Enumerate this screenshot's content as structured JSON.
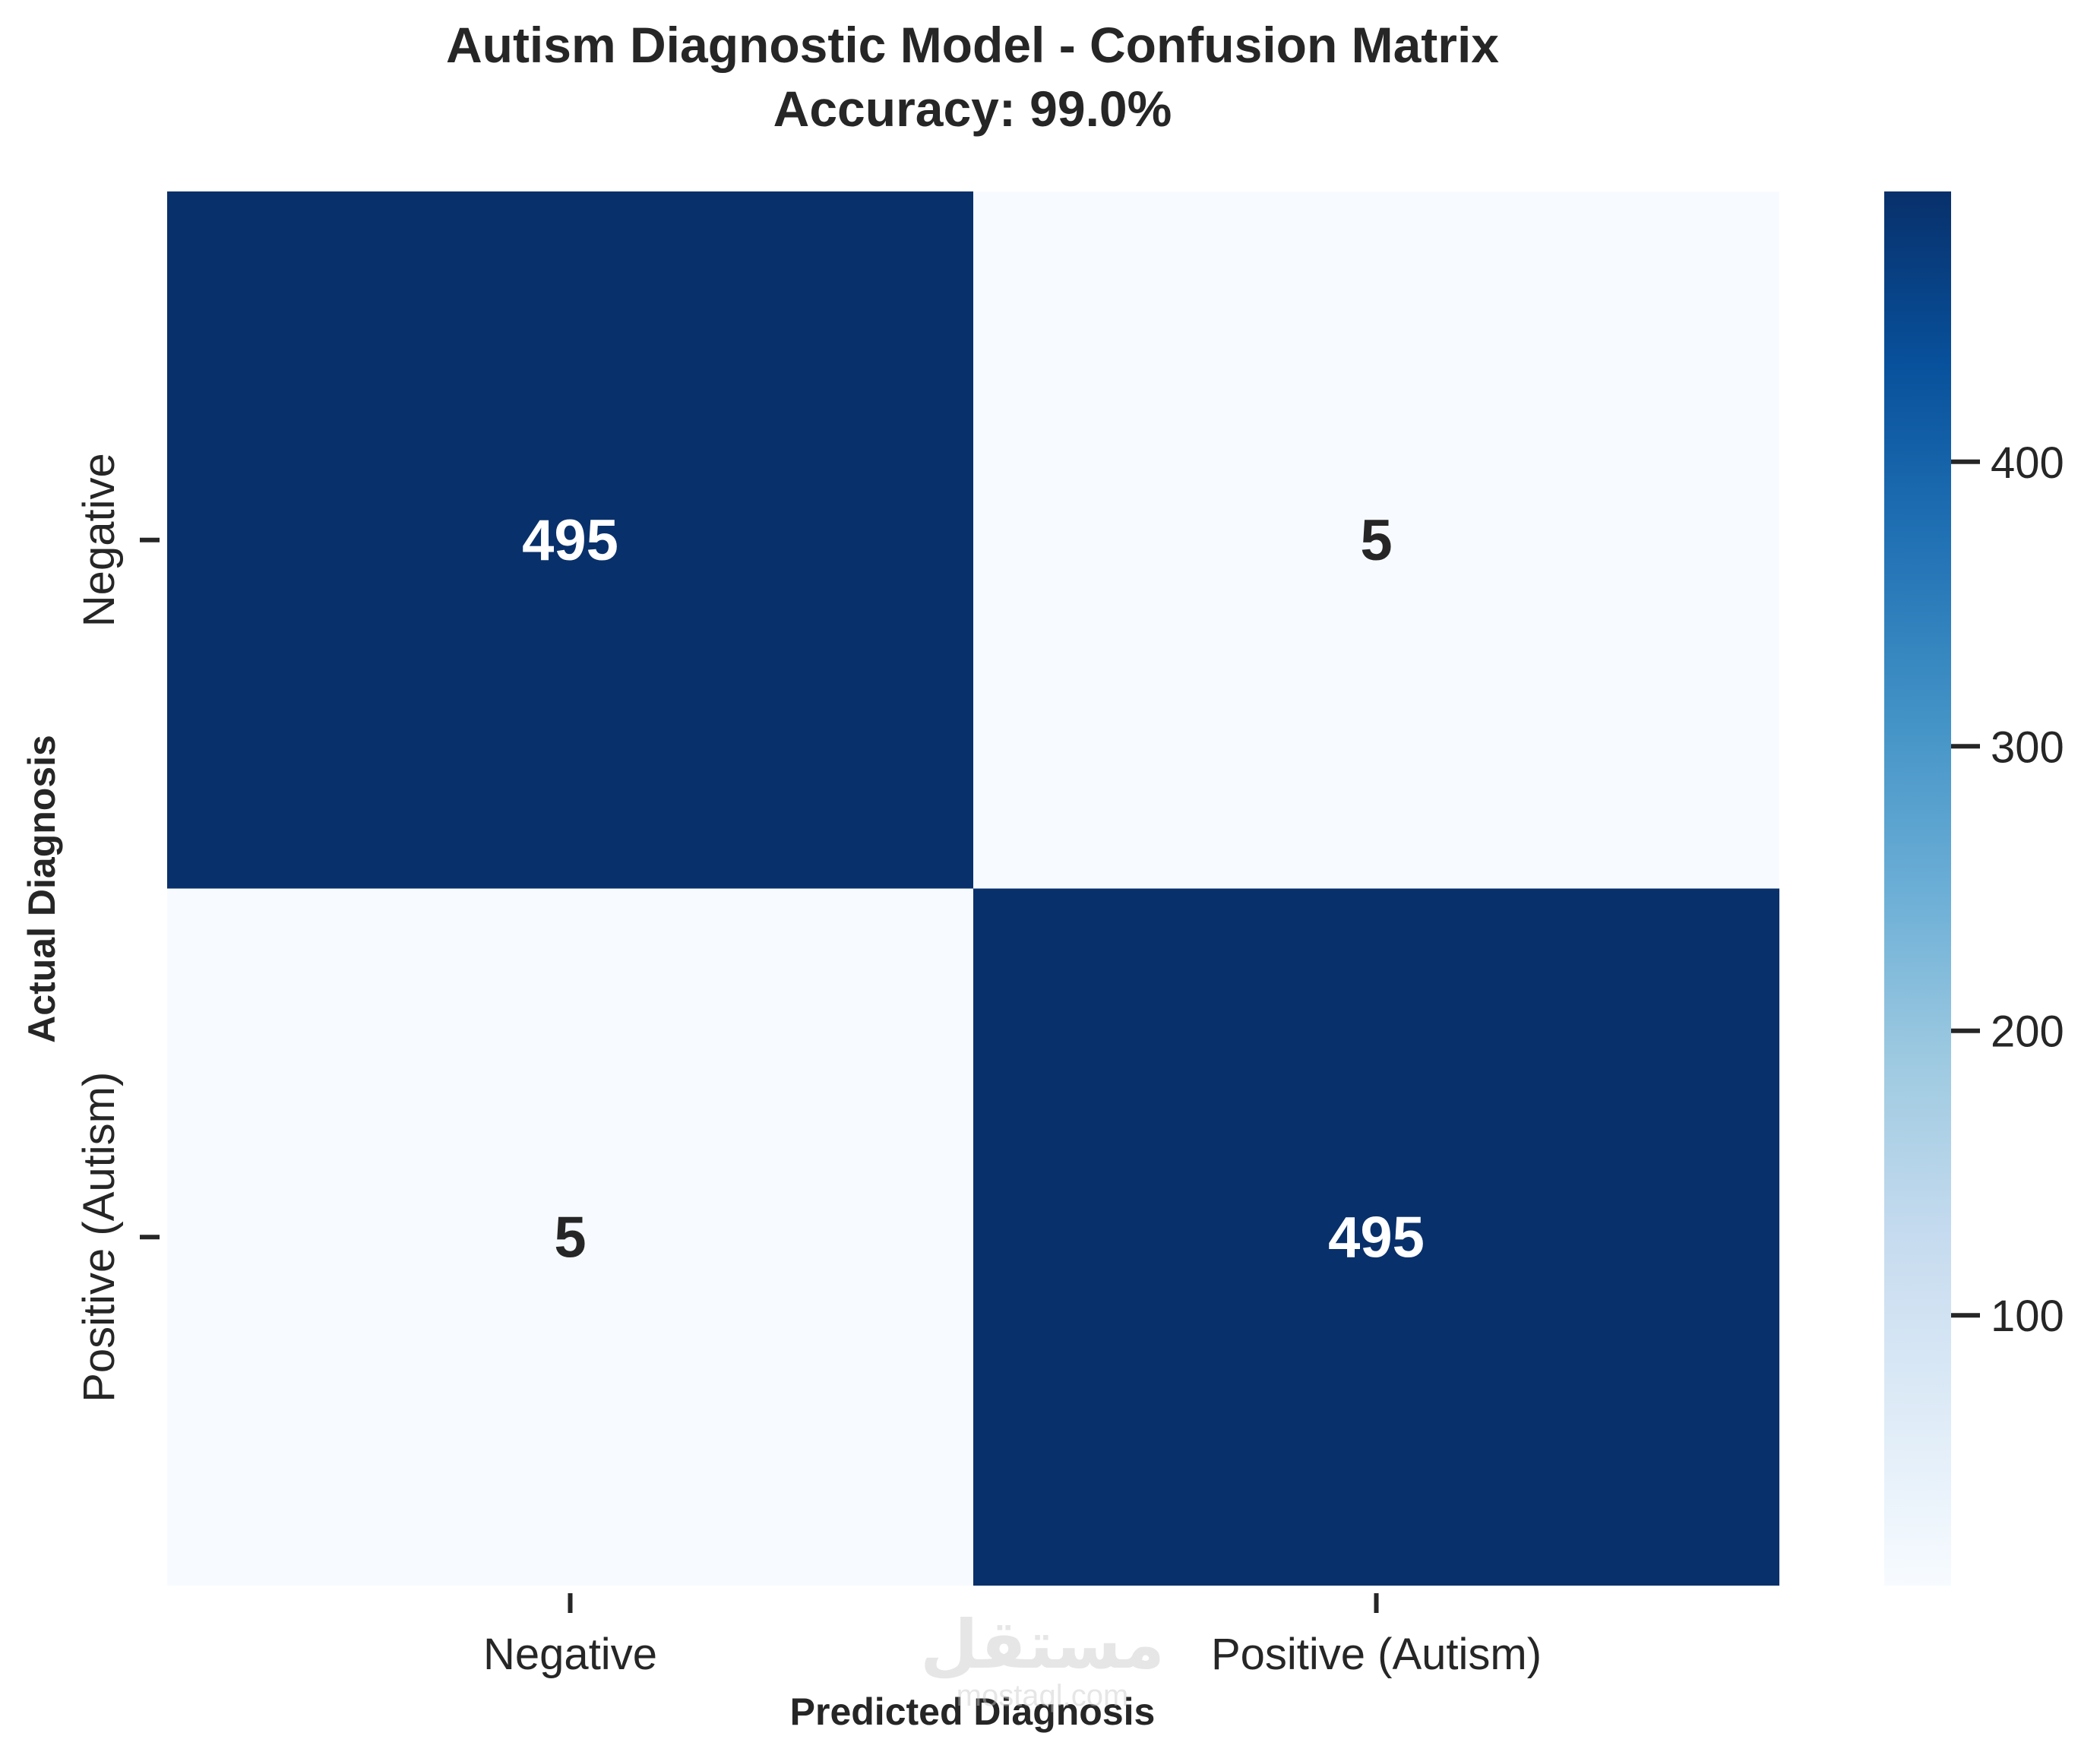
{
  "chart_data": {
    "type": "heatmap",
    "title": "Autism Diagnostic Model - Confusion Matrix",
    "subtitle": "Accuracy: 99.0%",
    "xlabel": "Predicted Diagnosis",
    "ylabel": "Actual Diagnosis",
    "x_categories": [
      "Negative",
      "Positive (Autism)"
    ],
    "y_categories": [
      "Negative",
      "Positive (Autism)"
    ],
    "matrix": [
      [
        495,
        5
      ],
      [
        5,
        495
      ]
    ],
    "colorbar": {
      "range": [
        5,
        495
      ],
      "ticks": [
        100,
        200,
        300,
        400
      ],
      "colormap": "Blues",
      "colors": [
        "#f7fbff",
        "#deebf7",
        "#c6dbef",
        "#9ecae1",
        "#6baed6",
        "#4292c6",
        "#2171b5",
        "#08519c",
        "#08306b"
      ]
    },
    "text_colors": {
      "on_dark": "#ffffff",
      "on_light": "#262626"
    }
  },
  "watermark": {
    "text": "مستقل",
    "subtext": "mostaql.com"
  }
}
